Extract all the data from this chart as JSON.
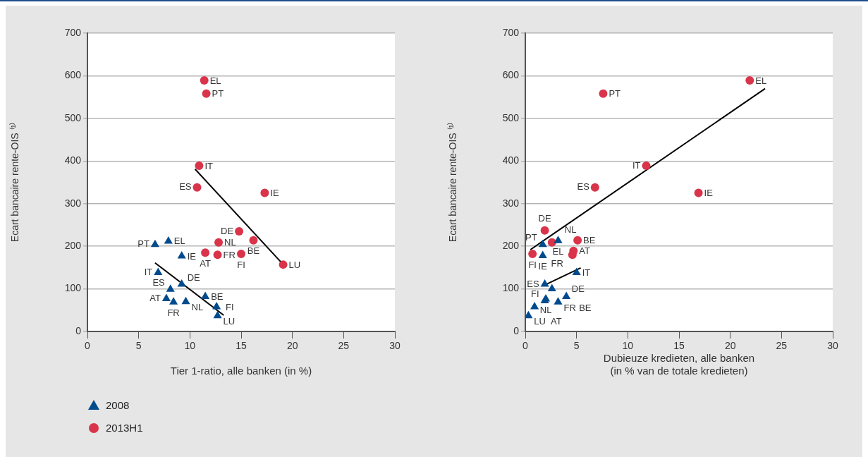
{
  "chart_data": [
    {
      "type": "scatter",
      "xlabel": "Tier 1-ratio, alle banken (in %)",
      "ylabel": "Ecart bancaire rente-OIS ⁽¹⁾",
      "xlim": [
        0,
        30
      ],
      "xticks": [
        0,
        5,
        10,
        15,
        20,
        25,
        30
      ],
      "ylim": [
        0,
        700
      ],
      "yticks": [
        0,
        100,
        200,
        300,
        400,
        500,
        600,
        700
      ],
      "grid": "y",
      "legend": "bottom left",
      "series": [
        {
          "name": "2008",
          "color": "#004b8d",
          "marker": "triangle",
          "x": [
            6.6,
            7.9,
            9.2,
            6.9,
            8.1,
            9.2,
            7.7,
            8.4,
            9.6,
            11.5,
            12.6,
            12.7
          ],
          "values": [
            204,
            212,
            177,
            138,
            99,
            111,
            77,
            69,
            70,
            82,
            58,
            37
          ]
        },
        {
          "name": "2013H1",
          "color": "#d9344a",
          "marker": "circle",
          "x": [
            11.4,
            11.6,
            10.9,
            10.7,
            17.3,
            14.8,
            16.2,
            12.8,
            11.5,
            12.7,
            15.0,
            19.1
          ],
          "values": [
            589,
            558,
            389,
            338,
            325,
            235,
            214,
            209,
            185,
            180,
            182,
            157
          ]
        },
        {
          "type": "line",
          "color": "#000000",
          "marker": "none",
          "x": [
            6.6,
            13.3
          ],
          "values": [
            161,
            38
          ]
        },
        {
          "type": "line",
          "color": "#000000",
          "marker": "none",
          "x": [
            10.5,
            19.3
          ],
          "values": [
            381,
            152
          ]
        }
      ],
      "annotations": [
        {
          "text": "PT",
          "x": 6.6,
          "y": 204
        },
        {
          "text": "EL",
          "x": 7.9,
          "y": 212
        },
        {
          "text": "IE",
          "x": 9.2,
          "y": 177
        },
        {
          "text": "IT",
          "x": 6.9,
          "y": 138
        },
        {
          "text": "ES",
          "x": 8.1,
          "y": 99
        },
        {
          "text": "DE",
          "x": 9.2,
          "y": 111
        },
        {
          "text": "AT",
          "x": 7.7,
          "y": 77
        },
        {
          "text": "FR",
          "x": 8.4,
          "y": 69
        },
        {
          "text": "NL",
          "x": 9.6,
          "y": 70
        },
        {
          "text": "BE",
          "x": 11.5,
          "y": 82
        },
        {
          "text": "FI",
          "x": 12.6,
          "y": 58
        },
        {
          "text": "LU",
          "x": 12.7,
          "y": 37
        },
        {
          "text": "EL",
          "x": 11.4,
          "y": 589
        },
        {
          "text": "PT",
          "x": 11.6,
          "y": 558
        },
        {
          "text": "IT",
          "x": 10.9,
          "y": 389
        },
        {
          "text": "ES",
          "x": 10.7,
          "y": 338
        },
        {
          "text": "IE",
          "x": 17.3,
          "y": 325
        },
        {
          "text": "DE",
          "x": 14.8,
          "y": 235
        },
        {
          "text": "BE",
          "x": 16.2,
          "y": 214
        },
        {
          "text": "NL",
          "x": 12.8,
          "y": 209
        },
        {
          "text": "AT",
          "x": 11.5,
          "y": 185
        },
        {
          "text": "FR",
          "x": 12.7,
          "y": 180
        },
        {
          "text": "FI",
          "x": 15.0,
          "y": 182
        },
        {
          "text": "LU",
          "x": 19.1,
          "y": 157
        }
      ]
    },
    {
      "type": "scatter",
      "xlabel": "Dubieuze kredieten, alle banken\n(in % van de totale kredieten)",
      "ylabel": "Ecart bancaire rente-OIS ⁽¹⁾",
      "xlim": [
        0,
        30
      ],
      "xticks": [
        0,
        5,
        10,
        15,
        20,
        25,
        30
      ],
      "ylim": [
        0,
        700
      ],
      "yticks": [
        0,
        100,
        200,
        300,
        400,
        500,
        600,
        700
      ],
      "grid": "y",
      "series": [
        {
          "color": "#004b8d",
          "marker": "triangle",
          "x": [
            1.7,
            3.2,
            1.7,
            5.0,
            1.9,
            2.6,
            2.0,
            1.9,
            3.2,
            4.0,
            0.9,
            0.3
          ],
          "values": [
            204,
            213,
            178,
            138,
            111,
            100,
            76,
            72,
            69,
            82,
            58,
            37
          ]
        },
        {
          "color": "#d9344a",
          "marker": "circle",
          "x": [
            21.9,
            7.6,
            11.8,
            6.8,
            16.9,
            1.9,
            5.1,
            2.6,
            4.7,
            4.6,
            0.7
          ],
          "values": [
            589,
            558,
            389,
            338,
            325,
            237,
            214,
            209,
            189,
            180,
            182
          ]
        },
        {
          "type": "line",
          "color": "#000000",
          "marker": "none",
          "x": [
            1.9,
            5.4
          ],
          "values": [
            109,
            149
          ]
        },
        {
          "type": "line",
          "color": "#000000",
          "marker": "none",
          "x": [
            0.5,
            23.4
          ],
          "values": [
            192,
            570
          ]
        }
      ],
      "annotations": [
        {
          "text": "PT",
          "x": 1.7,
          "y": 204
        },
        {
          "text": "EL",
          "x": 3.2,
          "y": 213
        },
        {
          "text": "IE",
          "x": 1.7,
          "y": 178
        },
        {
          "text": "IT",
          "x": 5.0,
          "y": 138
        },
        {
          "text": "ES",
          "x": 1.9,
          "y": 111
        },
        {
          "text": "DE",
          "x": 2.6,
          "y": 100
        },
        {
          "text": "NL",
          "x": 2.0,
          "y": 76
        },
        {
          "text": "FI",
          "x": 1.9,
          "y": 72
        },
        {
          "text": "FR",
          "x": 3.2,
          "y": 69
        },
        {
          "text": "BE",
          "x": 4.0,
          "y": 82
        },
        {
          "text": "AT",
          "x": 0.9,
          "y": 58
        },
        {
          "text": "LU",
          "x": 0.3,
          "y": 37
        },
        {
          "text": "EL",
          "x": 21.9,
          "y": 589
        },
        {
          "text": "PT",
          "x": 7.6,
          "y": 558
        },
        {
          "text": "IT",
          "x": 11.8,
          "y": 389
        },
        {
          "text": "ES",
          "x": 6.8,
          "y": 338
        },
        {
          "text": "IE",
          "x": 16.9,
          "y": 325
        },
        {
          "text": "DE",
          "x": 1.9,
          "y": 237
        },
        {
          "text": "BE",
          "x": 5.1,
          "y": 214
        },
        {
          "text": "NL",
          "x": 2.6,
          "y": 209
        },
        {
          "text": "AT",
          "x": 4.7,
          "y": 189
        },
        {
          "text": "FR",
          "x": 4.6,
          "y": 180
        },
        {
          "text": "FI",
          "x": 0.7,
          "y": 182
        }
      ]
    }
  ]
}
